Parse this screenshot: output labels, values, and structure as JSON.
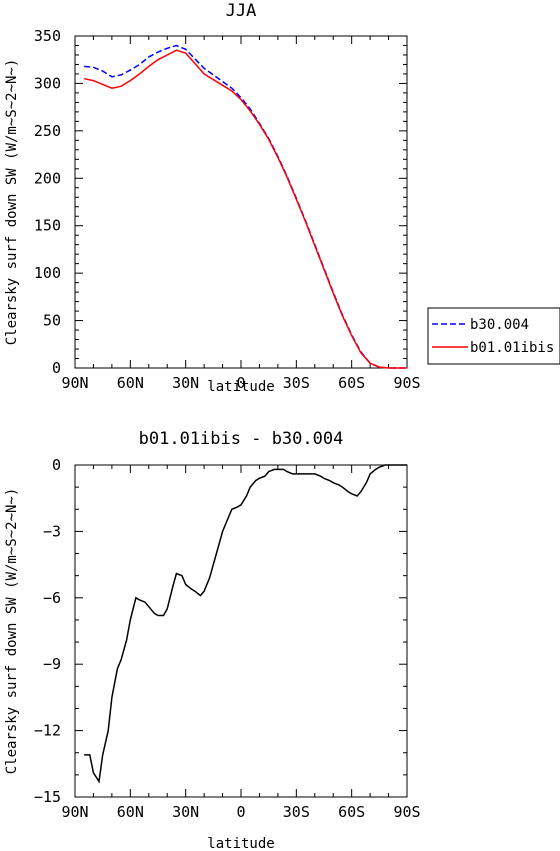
{
  "chart_data": [
    {
      "type": "line",
      "title": "JJA",
      "xlabel": "latitude",
      "ylabel": "Clearsky surf down SW (W/m~S~2~N~)",
      "xlim": [
        -90,
        90
      ],
      "ylim": [
        0,
        350
      ],
      "x_ticks": [
        -90,
        -60,
        -30,
        0,
        30,
        60,
        90
      ],
      "x_tick_labels": [
        "90N",
        "60N",
        "30N",
        "0",
        "30S",
        "60S",
        "90S"
      ],
      "y_ticks": [
        0,
        50,
        100,
        150,
        200,
        250,
        300,
        350
      ],
      "y_tick_labels": [
        "0",
        "50",
        "100",
        "150",
        "200",
        "250",
        "300",
        "350"
      ],
      "legend_position": "right",
      "series": [
        {
          "name": "b30.004",
          "color": "#0000ff",
          "dash": "dashed",
          "x": [
            -85,
            -80,
            -75,
            -70,
            -65,
            -60,
            -55,
            -50,
            -45,
            -40,
            -35,
            -30,
            -25,
            -20,
            -15,
            -10,
            -5,
            0,
            5,
            10,
            15,
            20,
            25,
            30,
            35,
            40,
            45,
            50,
            55,
            60,
            65,
            70,
            75,
            80,
            85,
            90
          ],
          "y": [
            318,
            317,
            313,
            307,
            309,
            314,
            320,
            328,
            333,
            337,
            340,
            336,
            326,
            316,
            309,
            302,
            295,
            285,
            273,
            258,
            242,
            223,
            202,
            179,
            155,
            130,
            105,
            80,
            56,
            35,
            17,
            5,
            1,
            0,
            0,
            0
          ]
        },
        {
          "name": "b01.01ibis",
          "color": "#ff0000",
          "dash": "solid",
          "x": [
            -85,
            -80,
            -75,
            -70,
            -65,
            -60,
            -55,
            -50,
            -45,
            -40,
            -35,
            -30,
            -25,
            -20,
            -15,
            -10,
            -5,
            0,
            5,
            10,
            15,
            20,
            25,
            30,
            35,
            40,
            45,
            50,
            55,
            60,
            65,
            70,
            75,
            80,
            85,
            90
          ],
          "y": [
            305,
            303,
            299,
            295,
            297,
            303,
            310,
            318,
            325,
            330,
            335,
            332,
            321,
            310,
            304,
            298,
            292,
            283,
            271,
            257,
            241,
            222,
            201,
            178,
            154,
            129,
            104,
            79,
            55,
            34,
            16,
            5,
            1,
            0,
            0,
            0
          ]
        }
      ]
    },
    {
      "type": "line",
      "title": "b01.01ibis - b30.004",
      "xlabel": "latitude",
      "ylabel": "Clearsky surf down SW (W/m~S~2~N~)",
      "xlim": [
        -90,
        90
      ],
      "ylim": [
        -15,
        0
      ],
      "x_ticks": [
        -90,
        -60,
        -30,
        0,
        30,
        60,
        90
      ],
      "x_tick_labels": [
        "90N",
        "60N",
        "30N",
        "0",
        "30S",
        "60S",
        "90S"
      ],
      "y_ticks": [
        -15,
        -12,
        -9,
        -6,
        -3,
        0
      ],
      "y_tick_labels": [
        "−15",
        "−12",
        "−9",
        "−6",
        "−3",
        "0"
      ],
      "series": [
        {
          "color": "#000000",
          "x": [
            -85,
            -82,
            -80,
            -77,
            -75,
            -72,
            -70,
            -67,
            -65,
            -62,
            -60,
            -57,
            -55,
            -52,
            -50,
            -47,
            -45,
            -42,
            -40,
            -37,
            -35,
            -32,
            -30,
            -27,
            -25,
            -22,
            -20,
            -17,
            -15,
            -12,
            -10,
            -7,
            -5,
            -2,
            0,
            3,
            5,
            8,
            10,
            13,
            15,
            18,
            20,
            23,
            25,
            28,
            30,
            33,
            35,
            38,
            40,
            43,
            45,
            48,
            50,
            53,
            55,
            58,
            60,
            63,
            65,
            68,
            70,
            73,
            75,
            78,
            80,
            83,
            85,
            88,
            90
          ],
          "y": [
            -13.1,
            -13.1,
            -13.9,
            -14.3,
            -13.1,
            -12.0,
            -10.5,
            -9.2,
            -8.8,
            -7.9,
            -7.0,
            -6.0,
            -6.1,
            -6.2,
            -6.4,
            -6.7,
            -6.8,
            -6.8,
            -6.5,
            -5.5,
            -4.9,
            -5.0,
            -5.4,
            -5.6,
            -5.7,
            -5.9,
            -5.7,
            -5.1,
            -4.5,
            -3.6,
            -3.0,
            -2.4,
            -2.0,
            -1.9,
            -1.8,
            -1.4,
            -1.0,
            -0.7,
            -0.6,
            -0.5,
            -0.3,
            -0.2,
            -0.2,
            -0.2,
            -0.3,
            -0.4,
            -0.4,
            -0.4,
            -0.4,
            -0.4,
            -0.4,
            -0.5,
            -0.6,
            -0.7,
            -0.8,
            -0.9,
            -1.0,
            -1.2,
            -1.3,
            -1.4,
            -1.2,
            -0.8,
            -0.4,
            -0.2,
            -0.1,
            0.0,
            0.0,
            0.0,
            0.0,
            0.0,
            0.0
          ]
        }
      ]
    }
  ]
}
